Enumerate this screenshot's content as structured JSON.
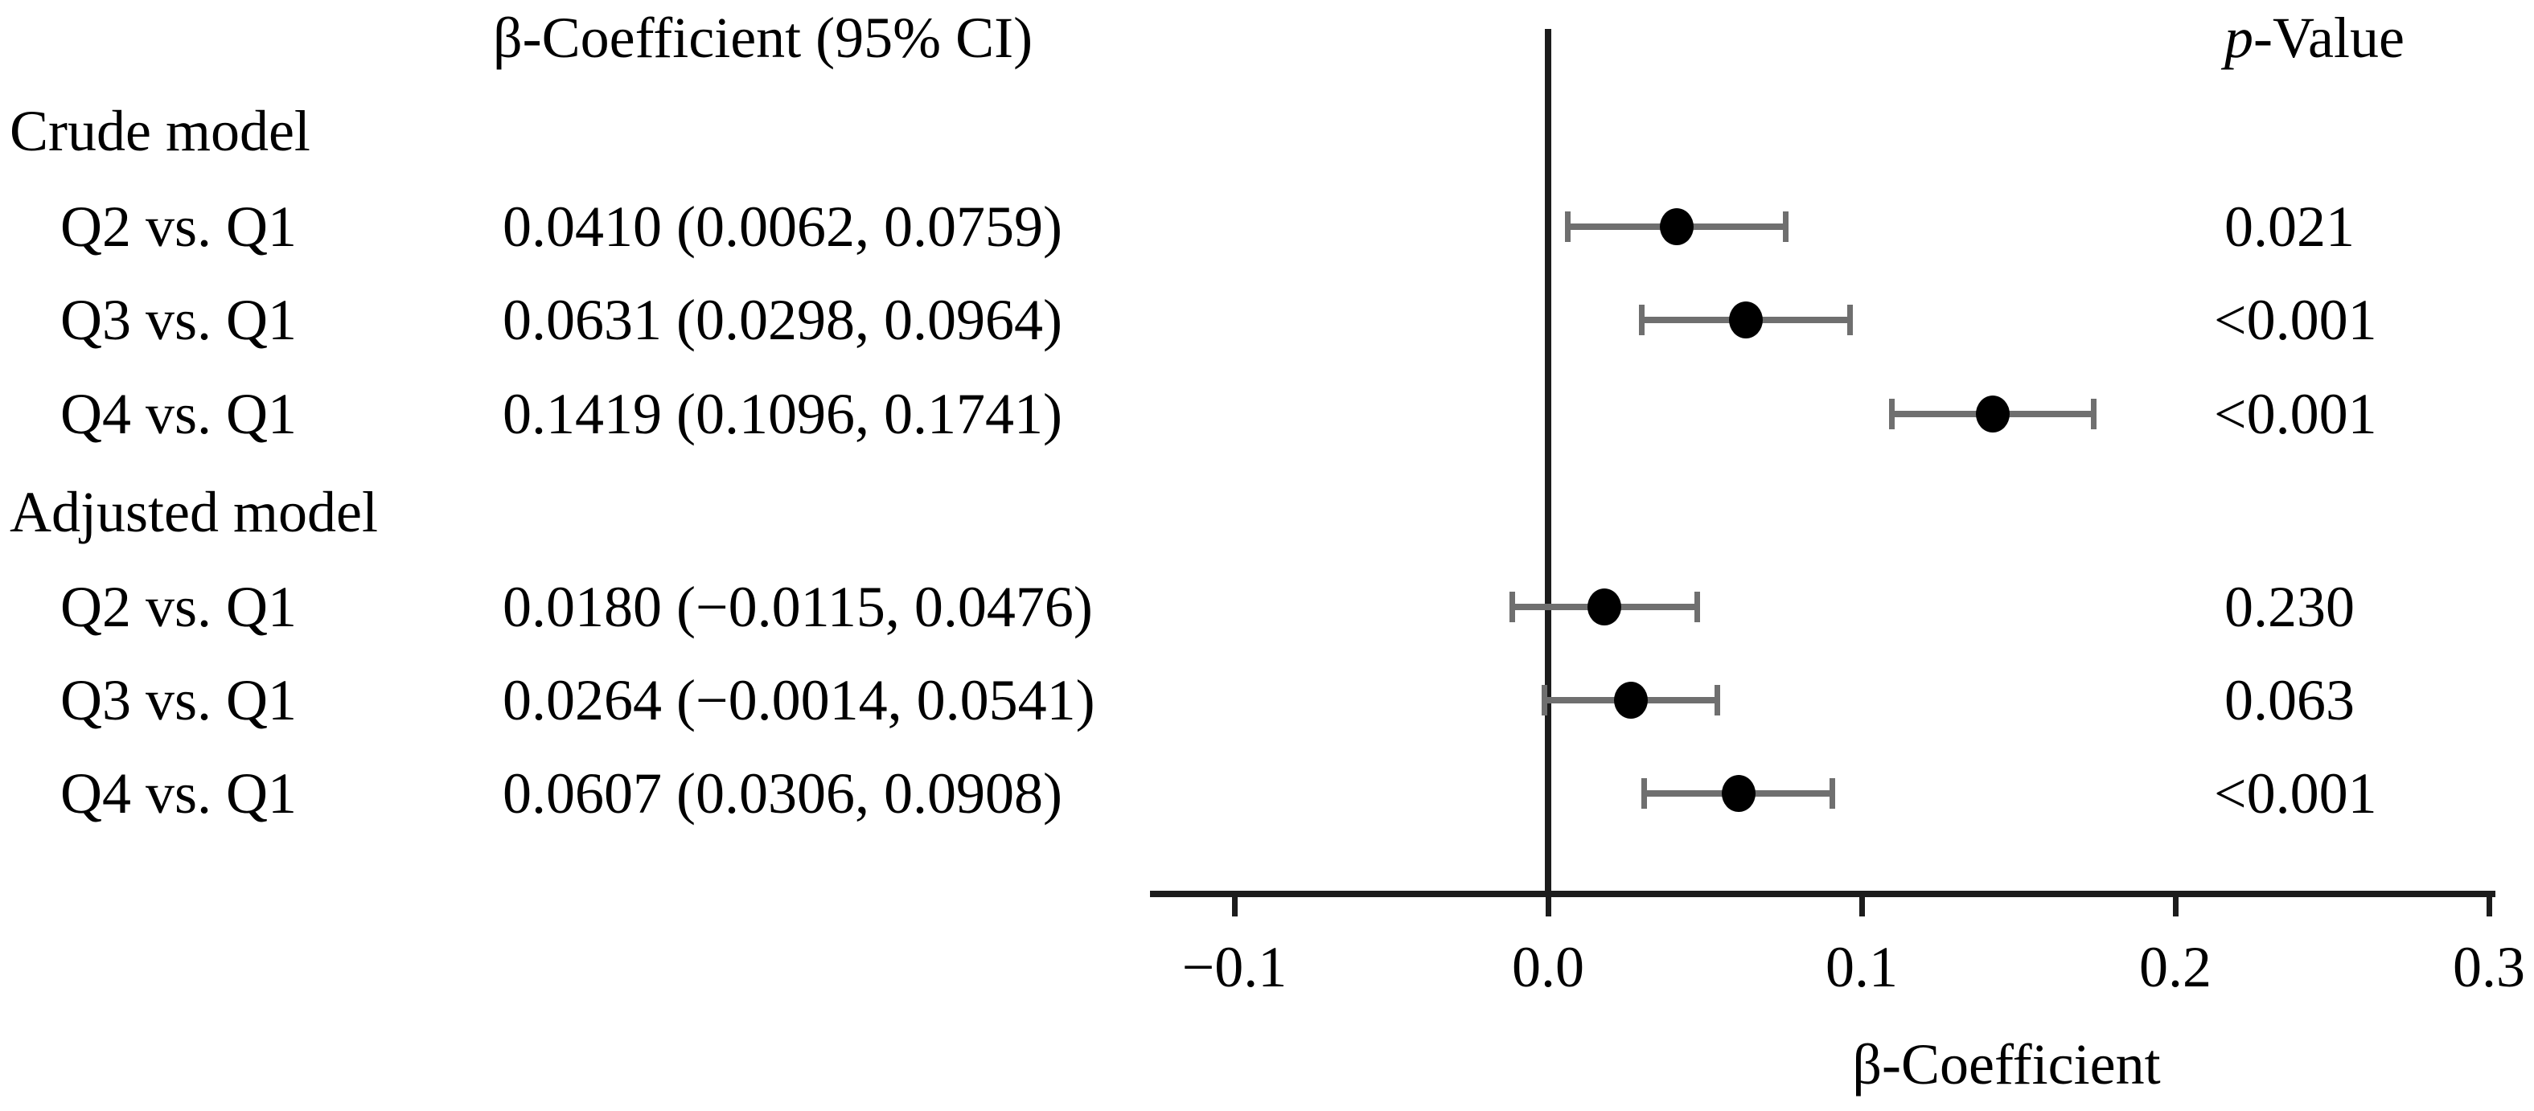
{
  "chart_data": {
    "type": "forest",
    "title": "",
    "xlabel": "β-Coefficient",
    "col_headers": {
      "estimate": "β-Coefficient (95% CI)",
      "pvalue_italic": "p",
      "pvalue_rest": "-Value"
    },
    "x_ticks": [
      {
        "value": -0.1,
        "label": "−0.1"
      },
      {
        "value": 0.0,
        "label": "0.0"
      },
      {
        "value": 0.1,
        "label": "0.1"
      },
      {
        "value": 0.2,
        "label": "0.2"
      },
      {
        "value": 0.3,
        "label": "0.3"
      }
    ],
    "xlim": [
      -0.127,
      0.302
    ],
    "zero_reference_line": 0.0,
    "legend": "none",
    "grid": "off",
    "groups": [
      {
        "label": "Crude model",
        "rows": [
          {
            "label": "Q2 vs. Q1",
            "estimate_text": "0.0410 (0.0062, 0.0759)",
            "beta": 0.041,
            "ci_low": 0.0062,
            "ci_high": 0.0759,
            "p_value": "0.021"
          },
          {
            "label": "Q3 vs. Q1",
            "estimate_text": "0.0631 (0.0298, 0.0964)",
            "beta": 0.0631,
            "ci_low": 0.0298,
            "ci_high": 0.0964,
            "p_value": "<0.001"
          },
          {
            "label": "Q4 vs. Q1",
            "estimate_text": "0.1419 (0.1096, 0.1741)",
            "beta": 0.1419,
            "ci_low": 0.1096,
            "ci_high": 0.1741,
            "p_value": "<0.001"
          }
        ]
      },
      {
        "label": "Adjusted model",
        "rows": [
          {
            "label": "Q2 vs. Q1",
            "estimate_text": "0.0180 (−0.0115, 0.0476)",
            "beta": 0.018,
            "ci_low": -0.0115,
            "ci_high": 0.0476,
            "p_value": "0.230"
          },
          {
            "label": "Q3 vs. Q1",
            "estimate_text": "0.0264 (−0.0014, 0.0541)",
            "beta": 0.0264,
            "ci_low": -0.0014,
            "ci_high": 0.0541,
            "p_value": "0.063"
          },
          {
            "label": "Q4 vs. Q1",
            "estimate_text": "0.0607 (0.0306, 0.0908)",
            "beta": 0.0607,
            "ci_low": 0.0306,
            "ci_high": 0.0908,
            "p_value": "<0.001"
          }
        ]
      }
    ]
  },
  "styles": {
    "background": "#ffffff",
    "text_color": "#000000",
    "point_color": "#000000",
    "ci_color": "#6f6f6f",
    "axis_color": "#1c1c1c"
  }
}
